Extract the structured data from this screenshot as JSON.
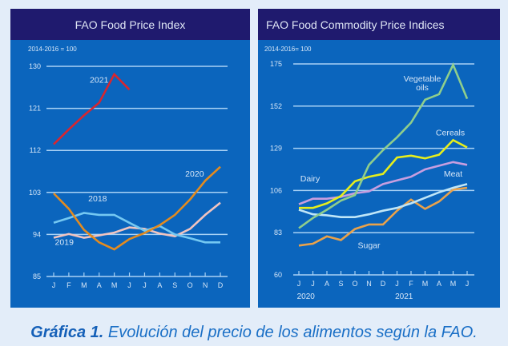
{
  "caption": {
    "label": "Gráfica 1.",
    "text": " Evolución del precio de los alimentos según la FAO."
  },
  "colors": {
    "panel_bg": "#0b65bd",
    "header_bg": "#1f1a6e",
    "grid": "#a9d2f5",
    "text": "#d6e6f7"
  },
  "chart_data": [
    {
      "type": "line",
      "title": "FAO Food Price Index",
      "subtitle": "2014-2016 = 100",
      "xlabel": "",
      "ylabel": "",
      "categories": [
        "J",
        "F",
        "M",
        "A",
        "M",
        "J",
        "J",
        "A",
        "S",
        "O",
        "N",
        "D"
      ],
      "ylim": [
        85,
        130
      ],
      "yticks": [
        85,
        94,
        103,
        112,
        121,
        130
      ],
      "grid": true,
      "series": [
        {
          "name": "2021",
          "color": "#d8262f",
          "label_pos": [
            3.0,
            126.5
          ],
          "values": [
            113.3,
            116.5,
            119.5,
            122.2,
            128.3,
            125.0,
            null,
            null,
            null,
            null,
            null,
            null
          ]
        },
        {
          "name": "2020",
          "color": "#e38b1f",
          "label_pos": [
            9.3,
            106.4
          ],
          "values": [
            102.8,
            99.5,
            95.0,
            92.3,
            90.8,
            93.0,
            94.3,
            96.0,
            98.2,
            101.5,
            105.5,
            108.5
          ]
        },
        {
          "name": "2018",
          "color": "#74c8f2",
          "label_pos": [
            2.9,
            101.1
          ],
          "values": [
            96.5,
            97.5,
            98.6,
            98.2,
            98.2,
            96.5,
            94.8,
            95.8,
            94.0,
            93.2,
            92.3,
            92.3
          ]
        },
        {
          "name": "2019",
          "color": "#f1c4c0",
          "label_pos": [
            0.7,
            91.8
          ],
          "values": [
            93.3,
            94.1,
            93.3,
            93.8,
            94.4,
            95.5,
            95.2,
            94.2,
            93.6,
            95.2,
            98.2,
            100.8
          ]
        }
      ]
    },
    {
      "type": "line",
      "title": "FAO Food Commodity Price Indices",
      "subtitle": "2014-2016= 100",
      "xlabel": "",
      "ylabel": "",
      "categories": [
        "J",
        "J",
        "A",
        "S",
        "O",
        "N",
        "D",
        "J",
        "F",
        "M",
        "A",
        "M",
        "J"
      ],
      "year_labels": [
        {
          "text": "2020",
          "at": 0.5
        },
        {
          "text": "2021",
          "at": 7.5
        }
      ],
      "ylim": [
        60,
        175
      ],
      "yticks": [
        60,
        83,
        106,
        129,
        152,
        175
      ],
      "grid": true,
      "series": [
        {
          "name": "Vegetable oils",
          "color": "#8fce8c",
          "label_lines": [
            "Vegetable",
            "oils"
          ],
          "label_pos": [
            8.8,
            165.5
          ],
          "values": [
            85.5,
            91.0,
            95.5,
            100.5,
            103.5,
            120.0,
            128.0,
            135.0,
            143.0,
            155.5,
            158.5,
            174.5,
            156.0
          ]
        },
        {
          "name": "Cereals",
          "color": "#e6ee1c",
          "label_lines": [
            "Cereals"
          ],
          "label_pos": [
            10.8,
            136.0
          ],
          "values": [
            96.5,
            96.5,
            99.0,
            103.0,
            111.0,
            113.5,
            115.0,
            124.0,
            125.0,
            123.5,
            125.5,
            133.5,
            129.5
          ]
        },
        {
          "name": "Dairy",
          "color": "#c89ee0",
          "label_lines": [
            "Dairy"
          ],
          "label_pos": [
            0.8,
            111.0
          ],
          "values": [
            98.5,
            101.5,
            101.5,
            102.5,
            104.5,
            105.5,
            109.5,
            111.5,
            113.5,
            117.5,
            119.5,
            121.5,
            120.0
          ]
        },
        {
          "name": "Meat",
          "color": "#bfe6f8",
          "label_lines": [
            "Meat"
          ],
          "label_pos": [
            11.0,
            113.5
          ],
          "values": [
            95.5,
            93.0,
            92.5,
            91.5,
            91.5,
            93.0,
            95.0,
            96.5,
            99.0,
            102.0,
            105.0,
            107.5,
            109.5
          ]
        },
        {
          "name": "Sugar",
          "color": "#eaa24a",
          "label_lines": [
            "Sugar"
          ],
          "label_pos": [
            5.0,
            74.5
          ],
          "values": [
            76.0,
            77.0,
            81.0,
            79.0,
            85.0,
            87.5,
            87.5,
            95.0,
            101.0,
            96.0,
            100.0,
            106.5,
            107.5
          ]
        }
      ]
    }
  ]
}
